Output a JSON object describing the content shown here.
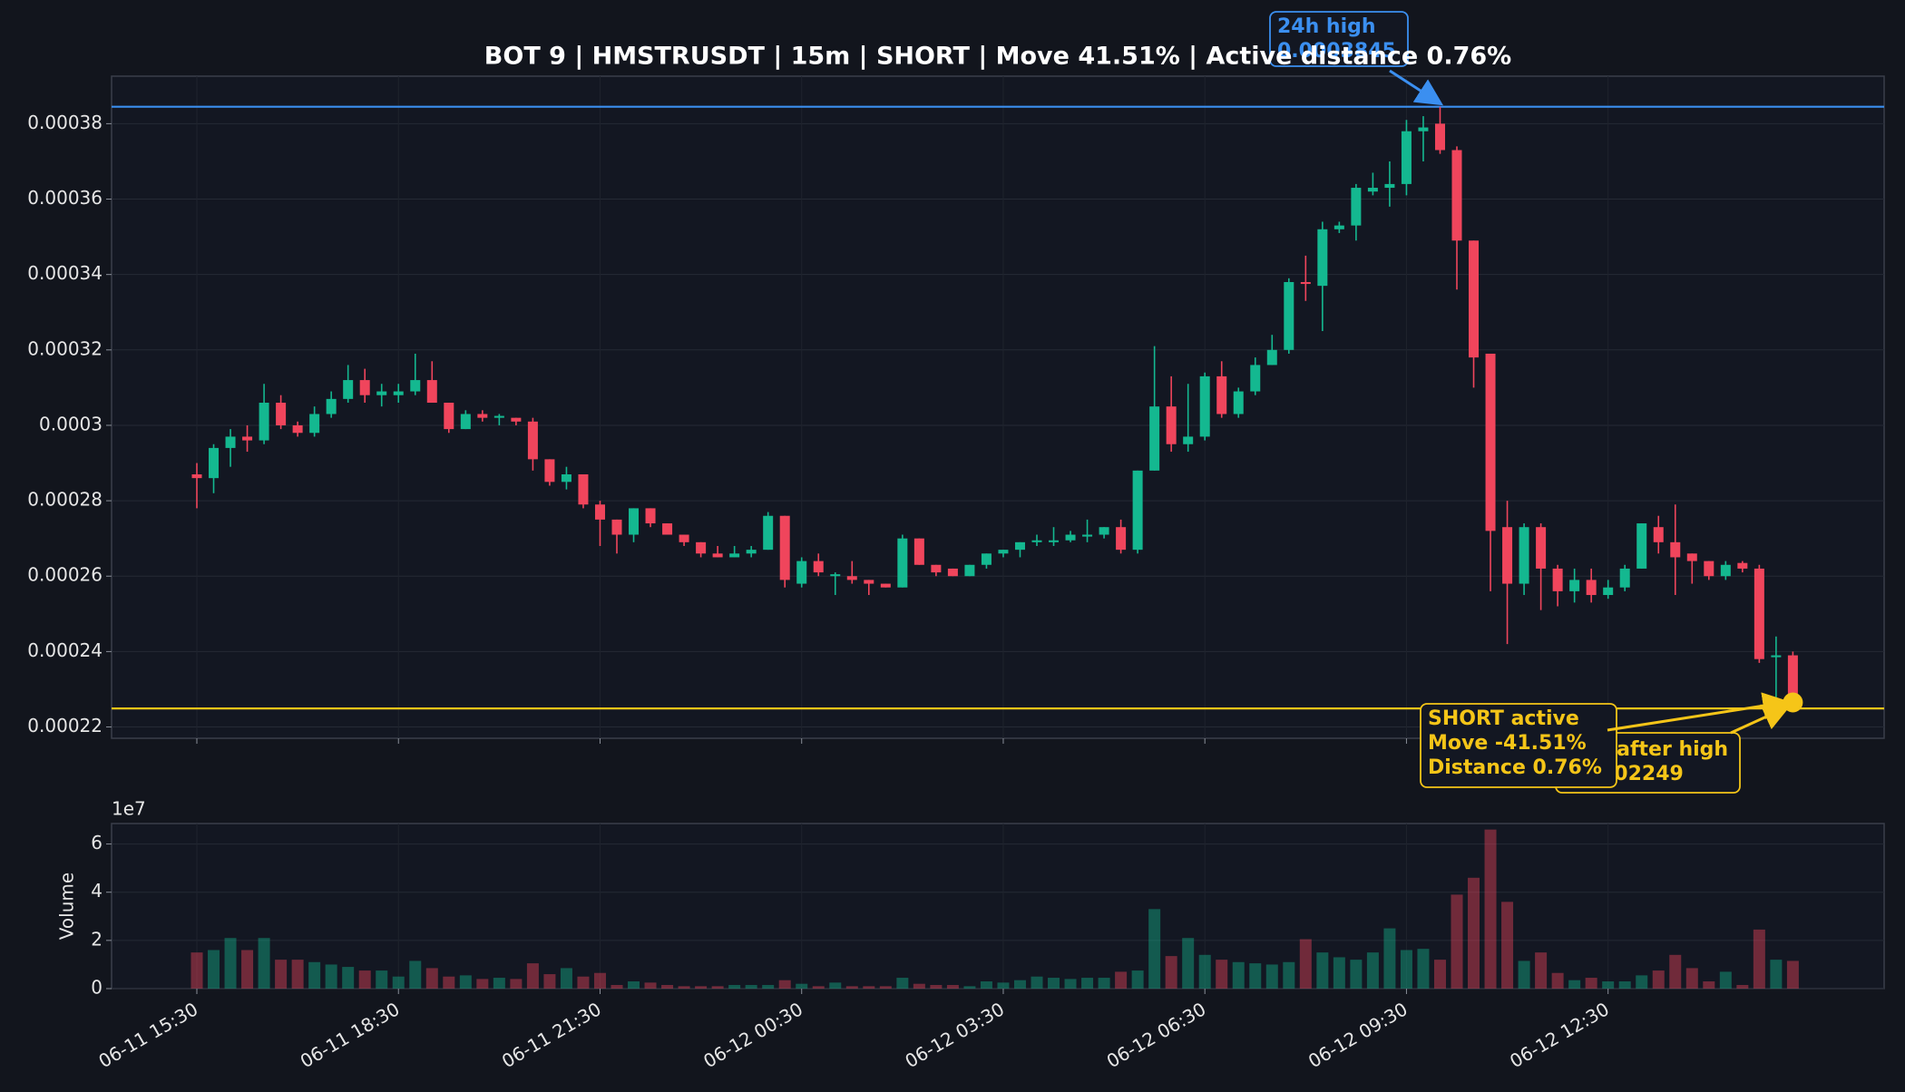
{
  "chart_data": {
    "type": "candlestick",
    "title": "BOT 9 | HMSTRUSDT | 15m | SHORT | Move 41.51% | Active distance 0.76%",
    "categories": [
      "06-11 15:30",
      null,
      null,
      null,
      null,
      null,
      null,
      null,
      null,
      null,
      null,
      null,
      "06-11 18:30",
      null,
      null,
      null,
      null,
      null,
      null,
      null,
      null,
      null,
      null,
      null,
      "06-11 21:30",
      null,
      null,
      null,
      null,
      null,
      null,
      null,
      null,
      null,
      null,
      null,
      "06-12 00:30",
      null,
      null,
      null,
      null,
      null,
      null,
      null,
      null,
      null,
      null,
      null,
      "06-12 03:30",
      null,
      null,
      null,
      null,
      null,
      null,
      null,
      null,
      null,
      null,
      null,
      "06-12 06:30",
      null,
      null,
      null,
      null,
      null,
      null,
      null,
      null,
      null,
      null,
      null,
      "06-12 09:30",
      null,
      null,
      null,
      null,
      null,
      null,
      null,
      null,
      null,
      null,
      null,
      "06-12 12:30",
      null,
      null,
      null,
      null,
      null,
      null,
      null,
      null,
      null,
      null,
      null
    ],
    "open": [
      0.000287,
      0.000286,
      0.000294,
      0.000297,
      0.000296,
      0.000306,
      0.0003,
      0.000298,
      0.000303,
      0.000307,
      0.000312,
      0.000308,
      0.000308,
      0.000309,
      0.000312,
      0.000306,
      0.000299,
      0.000303,
      0.000302,
      0.000302,
      0.000301,
      0.000291,
      0.000285,
      0.000287,
      0.000279,
      0.000275,
      0.000271,
      0.000278,
      0.000274,
      0.000271,
      0.000269,
      0.000266,
      0.000265,
      0.000266,
      0.000267,
      0.000276,
      0.000258,
      0.000264,
      0.00026,
      0.00026,
      0.000259,
      0.000258,
      0.000257,
      0.00027,
      0.000263,
      0.000262,
      0.00026,
      0.000263,
      0.000266,
      0.000267,
      0.000269,
      0.000269,
      0.0002695,
      0.0002705,
      0.000271,
      0.000273,
      0.000267,
      0.000288,
      0.000305,
      0.000295,
      0.000297,
      0.000313,
      0.000303,
      0.000309,
      0.000316,
      0.00032,
      0.000338,
      0.000337,
      0.000352,
      0.000353,
      0.000362,
      0.000363,
      0.000364,
      0.000378,
      0.00038,
      0.000373,
      0.000349,
      0.000319,
      0.000273,
      0.000258,
      0.000273,
      0.000262,
      0.000256,
      0.000259,
      0.000255,
      0.000257,
      0.000262,
      0.000273,
      0.000269,
      0.000266,
      0.000264,
      0.00026,
      0.0002635,
      0.000262,
      0.0002385,
      0.000239
    ],
    "high": [
      0.00029,
      0.000295,
      0.000299,
      0.0003,
      0.000311,
      0.000308,
      0.000301,
      0.000305,
      0.000309,
      0.000316,
      0.000315,
      0.000311,
      0.000311,
      0.000319,
      0.000317,
      0.000306,
      0.000304,
      0.000304,
      0.000303,
      0.000302,
      0.000302,
      0.000291,
      0.000289,
      0.000287,
      0.00028,
      0.000275,
      0.000278,
      0.000278,
      0.000274,
      0.000271,
      0.000269,
      0.000268,
      0.000268,
      0.000268,
      0.000277,
      0.000276,
      0.000265,
      0.000266,
      0.000261,
      0.000264,
      0.000259,
      0.000258,
      0.000271,
      0.00027,
      0.000263,
      0.000262,
      0.000263,
      0.000266,
      0.000267,
      0.000269,
      0.000271,
      0.000273,
      0.000272,
      0.000275,
      0.000273,
      0.000275,
      0.000288,
      0.000321,
      0.000313,
      0.000311,
      0.000314,
      0.000317,
      0.00031,
      0.000318,
      0.000324,
      0.000339,
      0.000345,
      0.000354,
      0.000354,
      0.000364,
      0.000367,
      0.00037,
      0.000381,
      0.000382,
      0.0003845,
      0.000374,
      0.000349,
      0.000319,
      0.00028,
      0.000274,
      0.000274,
      0.000263,
      0.000262,
      0.000262,
      0.000259,
      0.000263,
      0.000274,
      0.000276,
      0.000279,
      0.000266,
      0.000264,
      0.000264,
      0.000264,
      0.000263,
      0.000244,
      0.00024
    ],
    "low": [
      0.000278,
      0.000282,
      0.000289,
      0.000293,
      0.000295,
      0.000299,
      0.000297,
      0.000297,
      0.000302,
      0.000306,
      0.000306,
      0.000305,
      0.000306,
      0.000308,
      0.000306,
      0.000298,
      0.000299,
      0.000301,
      0.0003,
      0.0003,
      0.000288,
      0.000284,
      0.000283,
      0.000278,
      0.000268,
      0.000266,
      0.000269,
      0.000273,
      0.000271,
      0.000268,
      0.000265,
      0.000265,
      0.000265,
      0.000265,
      0.000267,
      0.000257,
      0.000257,
      0.00026,
      0.000255,
      0.000258,
      0.000255,
      0.000257,
      0.000257,
      0.000263,
      0.00026,
      0.00026,
      0.00026,
      0.000262,
      0.000265,
      0.000265,
      0.000268,
      0.000268,
      0.000269,
      0.000269,
      0.00027,
      0.000266,
      0.000266,
      0.000288,
      0.000293,
      0.000293,
      0.000296,
      0.000302,
      0.000302,
      0.000308,
      0.000316,
      0.000319,
      0.000333,
      0.000325,
      0.000351,
      0.000349,
      0.000361,
      0.000358,
      0.000361,
      0.00037,
      0.000372,
      0.000336,
      0.00031,
      0.000256,
      0.000242,
      0.000255,
      0.000251,
      0.000252,
      0.000253,
      0.000253,
      0.000254,
      0.000256,
      0.000262,
      0.000266,
      0.000255,
      0.000258,
      0.000259,
      0.000259,
      0.000261,
      0.000237,
      0.000227,
      0.0002249
    ],
    "close": [
      0.000286,
      0.000294,
      0.000297,
      0.000296,
      0.000306,
      0.0003,
      0.000298,
      0.000303,
      0.000307,
      0.000312,
      0.000308,
      0.000309,
      0.000309,
      0.000312,
      0.000306,
      0.000299,
      0.000303,
      0.000302,
      0.0003025,
      0.000301,
      0.000291,
      0.000285,
      0.000287,
      0.000279,
      0.000275,
      0.000271,
      0.000278,
      0.000274,
      0.000271,
      0.000269,
      0.000266,
      0.000265,
      0.000266,
      0.000267,
      0.000276,
      0.000259,
      0.000264,
      0.000261,
      0.0002605,
      0.000259,
      0.000258,
      0.000257,
      0.00027,
      0.000263,
      0.000261,
      0.00026,
      0.000263,
      0.000266,
      0.000267,
      0.000269,
      0.0002695,
      0.0002695,
      0.000271,
      0.000271,
      0.000273,
      0.000267,
      0.000288,
      0.000305,
      0.000295,
      0.000297,
      0.000313,
      0.000303,
      0.000309,
      0.000316,
      0.00032,
      0.000338,
      0.0003375,
      0.000352,
      0.000353,
      0.000363,
      0.000363,
      0.000364,
      0.000378,
      0.000379,
      0.000373,
      0.000349,
      0.000318,
      0.000272,
      0.000258,
      0.000273,
      0.000262,
      0.000256,
      0.000259,
      0.000255,
      0.000257,
      0.000262,
      0.000274,
      0.000269,
      0.000265,
      0.000264,
      0.00026,
      0.000263,
      0.000262,
      0.000238,
      0.000239,
      0.0002265
    ],
    "volume": [
      15000000,
      16000000,
      21000000,
      16000000,
      21000000,
      12000000,
      12000000,
      11000000,
      10000000,
      9000000,
      7500000,
      7500000,
      5000000,
      11500000,
      8500000,
      5000000,
      5500000,
      4000000,
      4500000,
      4000000,
      10500000,
      6000000,
      8500000,
      5000000,
      6500000,
      1500000,
      3000000,
      2500000,
      1500000,
      1000000,
      1000000,
      1000000,
      1500000,
      1500000,
      1500000,
      3500000,
      2000000,
      1000000,
      2500000,
      1000000,
      1000000,
      1000000,
      4500000,
      2000000,
      1500000,
      1500000,
      1000000,
      3000000,
      2500000,
      3500000,
      5000000,
      4500000,
      4000000,
      4500000,
      4500000,
      7000000,
      7500000,
      33000000,
      13500000,
      21000000,
      14000000,
      12000000,
      11000000,
      10500000,
      10000000,
      11000000,
      20500000,
      15000000,
      13000000,
      12000000,
      15000000,
      25000000,
      16000000,
      16500000,
      12000000,
      39000000,
      46000000,
      66000000,
      36000000,
      11500000,
      15000000,
      6500000,
      3500000,
      4500000,
      3000000,
      3000000,
      5500000,
      7500000,
      14000000,
      8500000,
      3000000,
      7000000,
      1500000,
      24500000,
      12000000,
      11500000
    ],
    "up_color": "#14b890",
    "down_color": "#f0455c",
    "ylim": [
      0.000217,
      0.0003926
    ],
    "yticks": [
      0.00022,
      0.00024,
      0.00026,
      0.00028,
      0.0003,
      0.00032,
      0.00034,
      0.00036,
      0.00038
    ],
    "grid": true,
    "volume_label": "Volume",
    "volume_offset": "1e7",
    "volume_ylim": [
      0,
      68500000
    ],
    "volume_yticks": [
      0,
      {
        "value": 20000000,
        "label": "2"
      },
      {
        "value": 40000000,
        "label": "4"
      },
      {
        "value": 60000000,
        "label": "6"
      }
    ],
    "high_line": {
      "label": "24h high",
      "value": 0.0003845,
      "color": "#3b8ff0"
    },
    "low_line": {
      "label": "Low after high",
      "value": 0.0002249,
      "color": "#f5c518"
    },
    "status_box": {
      "lines": [
        "SHORT active",
        "Move -41.51%",
        "Distance 0.76%"
      ]
    }
  }
}
